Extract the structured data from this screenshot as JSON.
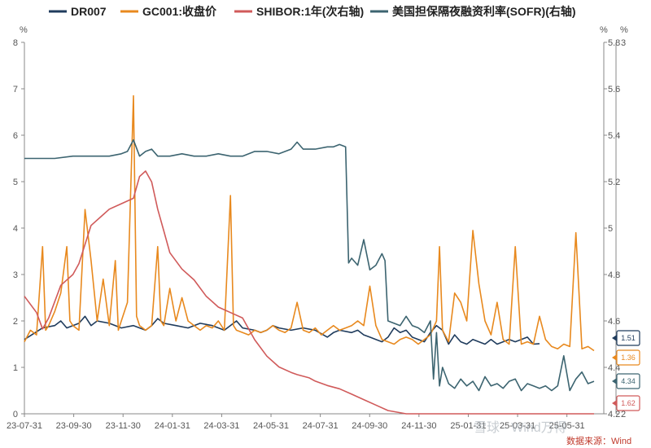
{
  "chart_data": {
    "type": "line",
    "legend_position": "top",
    "grid": false,
    "left_axis": {
      "unit": "%",
      "ylim": [
        0,
        8
      ],
      "ticks": [
        "0",
        "1",
        "2",
        "3",
        "4",
        "5",
        "6",
        "7",
        "8"
      ]
    },
    "right_axis_1": {
      "unit": "%",
      "ylim": [
        4.2,
        5.8
      ],
      "ticks": [
        "4.2",
        "4.4",
        "4.6",
        "4.8",
        "5",
        "5.2",
        "5.4",
        "5.6",
        "5.8"
      ]
    },
    "right_axis_2": {
      "unit": "%",
      "ticks": [
        "2",
        "3"
      ]
    },
    "x_ticks": [
      "23-07-31",
      "23-09-30",
      "23-11-30",
      "24-01-31",
      "24-03-31",
      "24-05-31",
      "24-07-31",
      "24-09-30",
      "24-11-30",
      "25-01-31",
      "25-03-31",
      "25-05-31"
    ],
    "series": [
      {
        "name": "DR007",
        "color": "#1f3b5c",
        "axis": "left",
        "points": [
          [
            0,
            1.6
          ],
          [
            3,
            1.85
          ],
          [
            5,
            1.9
          ],
          [
            6,
            2.0
          ],
          [
            7,
            1.85
          ],
          [
            9,
            1.95
          ],
          [
            10,
            2.1
          ],
          [
            11,
            1.9
          ],
          [
            12,
            2.0
          ],
          [
            14,
            1.95
          ],
          [
            16,
            1.85
          ],
          [
            18,
            1.9
          ],
          [
            20,
            1.8
          ],
          [
            21,
            1.9
          ],
          [
            22,
            2.05
          ],
          [
            23,
            1.95
          ],
          [
            25,
            1.9
          ],
          [
            27,
            1.85
          ],
          [
            29,
            1.95
          ],
          [
            31,
            1.9
          ],
          [
            33,
            1.8
          ],
          [
            35,
            2.0
          ],
          [
            36,
            1.85
          ],
          [
            38,
            1.8
          ],
          [
            39,
            1.75
          ],
          [
            40,
            1.8
          ],
          [
            41,
            1.9
          ],
          [
            42,
            1.85
          ],
          [
            44,
            1.8
          ],
          [
            46,
            1.85
          ],
          [
            48,
            1.8
          ],
          [
            50,
            1.65
          ],
          [
            51,
            1.75
          ],
          [
            52,
            1.8
          ],
          [
            54,
            1.75
          ],
          [
            55,
            1.8
          ],
          [
            56,
            1.7
          ],
          [
            57,
            1.65
          ],
          [
            58,
            1.6
          ],
          [
            59,
            1.55
          ],
          [
            60,
            1.65
          ],
          [
            61,
            1.85
          ],
          [
            62,
            1.75
          ],
          [
            63,
            1.8
          ],
          [
            64,
            1.65
          ],
          [
            65,
            1.6
          ],
          [
            66,
            1.55
          ],
          [
            67,
            1.75
          ],
          [
            68,
            1.9
          ],
          [
            69,
            1.8
          ],
          [
            70,
            1.5
          ],
          [
            71,
            1.7
          ],
          [
            72,
            1.55
          ],
          [
            73,
            1.5
          ],
          [
            74,
            1.6
          ],
          [
            75,
            1.55
          ],
          [
            76,
            1.5
          ],
          [
            77,
            1.6
          ],
          [
            78,
            1.5
          ],
          [
            79,
            1.55
          ],
          [
            80,
            1.6
          ],
          [
            81,
            1.55
          ],
          [
            82,
            1.6
          ],
          [
            83,
            1.65
          ],
          [
            84,
            1.5
          ],
          [
            85,
            1.51
          ]
        ]
      },
      {
        "name": "GC001:收盘价",
        "color": "#e8891e",
        "axis": "left",
        "points": [
          [
            0,
            1.55
          ],
          [
            1,
            1.8
          ],
          [
            2,
            1.7
          ],
          [
            3,
            3.6
          ],
          [
            3.5,
            1.8
          ],
          [
            4,
            1.9
          ],
          [
            5,
            2.2
          ],
          [
            6,
            2.6
          ],
          [
            7,
            3.6
          ],
          [
            7.5,
            2.0
          ],
          [
            8,
            1.9
          ],
          [
            9,
            1.8
          ],
          [
            10,
            4.4
          ],
          [
            11,
            3.3
          ],
          [
            12,
            2.0
          ],
          [
            13,
            2.9
          ],
          [
            14,
            1.9
          ],
          [
            15,
            3.3
          ],
          [
            15.5,
            1.8
          ],
          [
            16,
            2.0
          ],
          [
            17,
            2.4
          ],
          [
            18,
            6.85
          ],
          [
            18.5,
            2.1
          ],
          [
            19,
            1.9
          ],
          [
            20,
            1.8
          ],
          [
            21,
            1.9
          ],
          [
            22,
            3.6
          ],
          [
            22.5,
            2.0
          ],
          [
            23,
            1.9
          ],
          [
            24,
            2.7
          ],
          [
            25,
            2.0
          ],
          [
            26,
            2.5
          ],
          [
            27,
            2.0
          ],
          [
            28,
            1.9
          ],
          [
            29,
            1.8
          ],
          [
            30,
            1.9
          ],
          [
            31,
            1.85
          ],
          [
            32,
            2.0
          ],
          [
            33,
            1.8
          ],
          [
            34,
            4.7
          ],
          [
            34.5,
            1.9
          ],
          [
            35,
            1.8
          ],
          [
            36,
            1.75
          ],
          [
            37,
            1.7
          ],
          [
            38,
            1.8
          ],
          [
            39,
            1.75
          ],
          [
            40,
            1.8
          ],
          [
            41,
            1.9
          ],
          [
            42,
            1.8
          ],
          [
            43,
            1.75
          ],
          [
            44,
            1.85
          ],
          [
            45,
            2.4
          ],
          [
            46,
            1.8
          ],
          [
            47,
            1.75
          ],
          [
            48,
            1.85
          ],
          [
            49,
            1.7
          ],
          [
            50,
            1.8
          ],
          [
            51,
            1.9
          ],
          [
            52,
            1.8
          ],
          [
            53,
            1.85
          ],
          [
            54,
            1.9
          ],
          [
            55,
            2.0
          ],
          [
            56,
            1.9
          ],
          [
            57,
            2.75
          ],
          [
            58,
            1.9
          ],
          [
            59,
            1.6
          ],
          [
            60,
            1.55
          ],
          [
            61,
            1.5
          ],
          [
            62,
            1.6
          ],
          [
            63,
            1.65
          ],
          [
            64,
            1.6
          ],
          [
            65,
            1.5
          ],
          [
            66,
            1.6
          ],
          [
            67,
            1.7
          ],
          [
            68,
            2.0
          ],
          [
            68.5,
            3.6
          ],
          [
            69,
            1.8
          ],
          [
            70,
            1.55
          ],
          [
            71,
            2.6
          ],
          [
            72,
            2.4
          ],
          [
            73,
            2.0
          ],
          [
            74,
            3.95
          ],
          [
            75,
            2.8
          ],
          [
            76,
            2.0
          ],
          [
            77,
            1.7
          ],
          [
            78,
            2.4
          ],
          [
            79,
            1.6
          ],
          [
            80,
            1.5
          ],
          [
            81,
            3.6
          ],
          [
            82,
            1.5
          ],
          [
            83,
            1.55
          ],
          [
            84,
            1.5
          ],
          [
            85,
            2.1
          ],
          [
            86,
            1.6
          ],
          [
            87,
            1.45
          ],
          [
            88,
            1.4
          ],
          [
            89,
            1.5
          ],
          [
            90,
            1.45
          ],
          [
            91,
            3.9
          ],
          [
            92,
            1.4
          ],
          [
            93,
            1.45
          ],
          [
            94,
            1.36
          ]
        ]
      },
      {
        "name": "SHIBOR:1年(次右轴)",
        "color": "#d05a5a",
        "axis": "right_secondary",
        "points": [
          [
            0,
            2.7
          ],
          [
            2,
            2.55
          ],
          [
            3,
            2.4
          ],
          [
            4,
            2.5
          ],
          [
            6,
            2.8
          ],
          [
            8,
            2.9
          ],
          [
            9,
            3.0
          ],
          [
            11,
            3.35
          ],
          [
            13,
            3.45
          ],
          [
            14,
            3.5
          ],
          [
            16,
            3.55
          ],
          [
            18,
            3.6
          ],
          [
            19,
            3.8
          ],
          [
            20,
            3.85
          ],
          [
            21,
            3.75
          ],
          [
            22,
            3.5
          ],
          [
            23,
            3.3
          ],
          [
            24,
            3.1
          ],
          [
            26,
            2.95
          ],
          [
            28,
            2.85
          ],
          [
            30,
            2.7
          ],
          [
            32,
            2.6
          ],
          [
            34,
            2.55
          ],
          [
            36,
            2.5
          ],
          [
            38,
            2.3
          ],
          [
            40,
            2.15
          ],
          [
            42,
            2.05
          ],
          [
            44,
            2.0
          ],
          [
            45,
            1.98
          ],
          [
            47,
            1.95
          ],
          [
            48,
            1.92
          ],
          [
            50,
            1.88
          ],
          [
            52,
            1.85
          ],
          [
            54,
            1.8
          ],
          [
            56,
            1.75
          ],
          [
            58,
            1.7
          ],
          [
            60,
            1.65
          ],
          [
            63,
            1.62
          ],
          [
            67,
            1.62
          ],
          [
            70,
            1.62
          ],
          [
            75,
            1.62
          ],
          [
            80,
            1.62
          ],
          [
            85,
            1.62
          ],
          [
            94,
            1.62
          ]
        ]
      },
      {
        "name": "美国担保隔夜融资利率(SOFR)(右轴)",
        "color": "#3c6470",
        "axis": "right_primary",
        "points": [
          [
            0,
            5.3
          ],
          [
            5,
            5.3
          ],
          [
            8,
            5.31
          ],
          [
            10,
            5.31
          ],
          [
            12,
            5.31
          ],
          [
            14,
            5.31
          ],
          [
            16,
            5.32
          ],
          [
            17,
            5.33
          ],
          [
            18,
            5.38
          ],
          [
            19,
            5.31
          ],
          [
            20,
            5.33
          ],
          [
            21,
            5.34
          ],
          [
            22,
            5.31
          ],
          [
            24,
            5.31
          ],
          [
            26,
            5.32
          ],
          [
            28,
            5.31
          ],
          [
            30,
            5.31
          ],
          [
            32,
            5.32
          ],
          [
            34,
            5.31
          ],
          [
            36,
            5.31
          ],
          [
            38,
            5.33
          ],
          [
            40,
            5.33
          ],
          [
            42,
            5.32
          ],
          [
            44,
            5.34
          ],
          [
            45,
            5.37
          ],
          [
            46,
            5.34
          ],
          [
            48,
            5.34
          ],
          [
            50,
            5.35
          ],
          [
            51,
            5.35
          ],
          [
            52,
            5.36
          ],
          [
            53,
            5.35
          ],
          [
            53.5,
            4.85
          ],
          [
            54,
            4.87
          ],
          [
            55,
            4.84
          ],
          [
            56,
            4.95
          ],
          [
            57,
            4.82
          ],
          [
            58,
            4.84
          ],
          [
            59,
            4.89
          ],
          [
            59.5,
            4.86
          ],
          [
            60,
            4.6
          ],
          [
            61,
            4.59
          ],
          [
            62,
            4.58
          ],
          [
            63,
            4.62
          ],
          [
            64,
            4.58
          ],
          [
            65,
            4.57
          ],
          [
            66,
            4.55
          ],
          [
            67,
            4.6
          ],
          [
            67.5,
            4.35
          ],
          [
            68,
            4.55
          ],
          [
            68.5,
            4.32
          ],
          [
            69,
            4.4
          ],
          [
            70,
            4.33
          ],
          [
            71,
            4.31
          ],
          [
            72,
            4.35
          ],
          [
            73,
            4.32
          ],
          [
            74,
            4.34
          ],
          [
            75,
            4.3
          ],
          [
            76,
            4.36
          ],
          [
            77,
            4.32
          ],
          [
            78,
            4.33
          ],
          [
            79,
            4.31
          ],
          [
            80,
            4.34
          ],
          [
            81,
            4.35
          ],
          [
            82,
            4.3
          ],
          [
            83,
            4.33
          ],
          [
            84,
            4.32
          ],
          [
            85,
            4.31
          ],
          [
            86,
            4.32
          ],
          [
            87,
            4.3
          ],
          [
            88,
            4.32
          ],
          [
            89,
            4.45
          ],
          [
            90,
            4.3
          ],
          [
            91,
            4.35
          ],
          [
            92,
            4.38
          ],
          [
            93,
            4.33
          ],
          [
            94,
            4.34
          ]
        ]
      }
    ],
    "end_labels": [
      {
        "series": "DR007",
        "value": "1.51",
        "color": "#1f3b5c"
      },
      {
        "series": "GC001:收盘价",
        "value": "1.36",
        "color": "#e8891e"
      },
      {
        "series": "美国担保隔夜融资利率(SOFR)(右轴)",
        "value": "4.34",
        "color": "#3c6470"
      },
      {
        "series": "SHIBOR:1年(次右轴)",
        "value": "1.62",
        "color": "#d05a5a"
      }
    ],
    "source_text": "数据来源：Wind",
    "watermark": "雪球 · Wind万得"
  }
}
